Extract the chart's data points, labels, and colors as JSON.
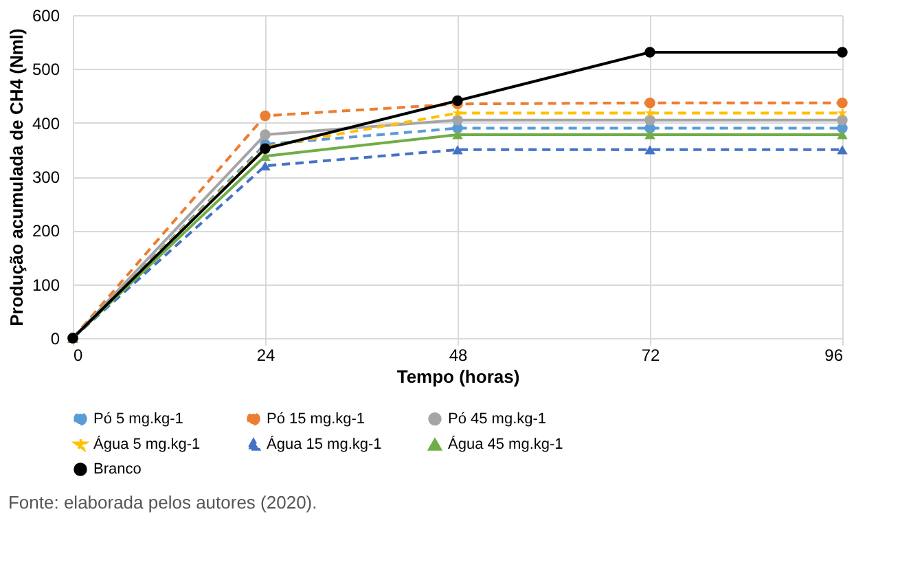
{
  "chart_data": {
    "type": "line",
    "xlabel": "Tempo (horas)",
    "ylabel": "Produção acumulada de CH4 (Nml)",
    "x": [
      0,
      24,
      48,
      72,
      96
    ],
    "xlim": [
      0,
      96
    ],
    "xticks": [
      0,
      24,
      48,
      72,
      96
    ],
    "ylim": [
      0,
      600
    ],
    "yticks": [
      0,
      100,
      200,
      300,
      400,
      500,
      600
    ],
    "grid": true,
    "legend": "bottom",
    "series": [
      {
        "name": "Pó 5 mg.kg-1",
        "color": "#5b9bd5",
        "marker": "circle",
        "line_style": "dashed",
        "values": [
          0,
          360,
          390,
          390,
          390
        ]
      },
      {
        "name": "Pó 15 mg.kg-1",
        "color": "#ed7d31",
        "marker": "circle",
        "line_style": "dashed",
        "values": [
          0,
          413,
          435,
          437,
          437
        ]
      },
      {
        "name": "Pó 45 mg.kg-1",
        "color": "#a5a5a5",
        "marker": "circle",
        "line_style": "solid",
        "values": [
          0,
          378,
          405,
          405,
          405
        ]
      },
      {
        "name": "Água 5 mg.kg-1",
        "color": "#ffc000",
        "marker": "star",
        "line_style": "dashed",
        "values": [
          0,
          355,
          418,
          418,
          418
        ]
      },
      {
        "name": "Água 15 mg.kg-1",
        "color": "#4472c4",
        "marker": "triangle",
        "line_style": "dashed",
        "values": [
          0,
          320,
          350,
          350,
          350
        ]
      },
      {
        "name": "Água 45 mg.kg-1",
        "color": "#70ad47",
        "marker": "triangle",
        "line_style": "solid",
        "values": [
          0,
          338,
          378,
          378,
          378
        ]
      },
      {
        "name": "Branco",
        "color": "#000000",
        "marker": "circle",
        "line_style": "solid",
        "values": [
          0,
          352,
          441,
          531,
          531
        ]
      }
    ],
    "annotations": [
      "Fonte: elaborada pelos autores (2020)."
    ]
  }
}
